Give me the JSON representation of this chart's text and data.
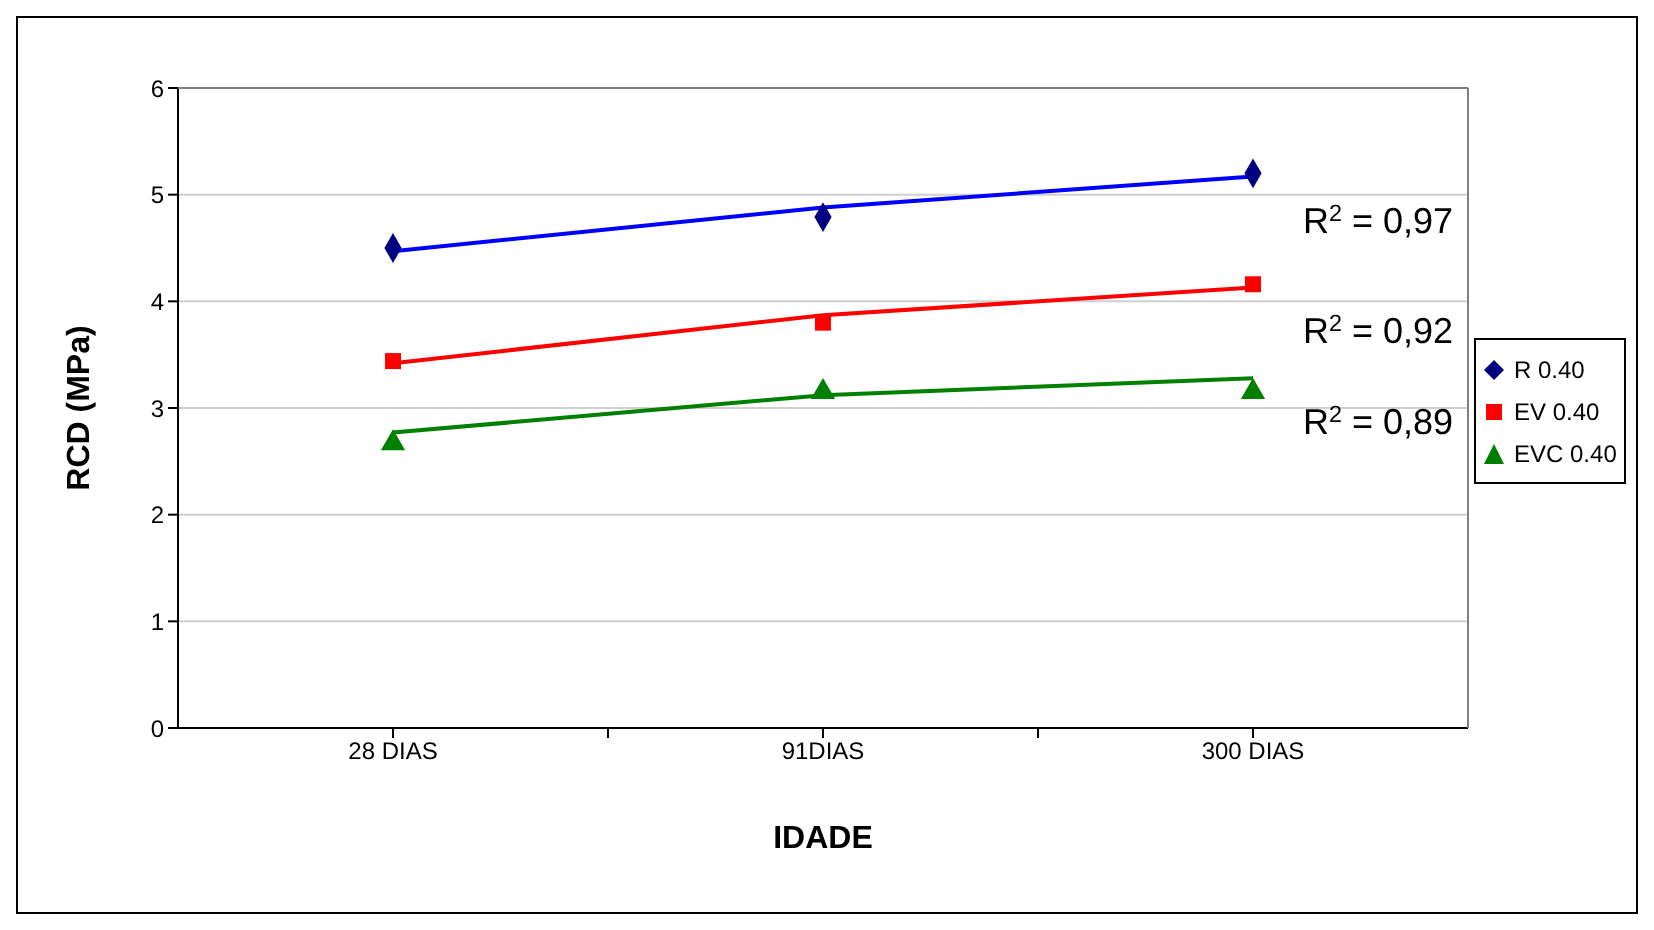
{
  "chart_data": {
    "type": "scatter",
    "xlabel": "IDADE",
    "ylabel": "RCD (MPa)",
    "categories": [
      "28 DIAS",
      "91DIAS",
      "300 DIAS"
    ],
    "ylim": [
      0,
      6
    ],
    "yticks": [
      0,
      1,
      2,
      3,
      4,
      5,
      6
    ],
    "grid": "y",
    "legend": "right",
    "series": [
      {
        "name": "R 0.40",
        "color": "#000080",
        "marker": "diamond",
        "values": [
          4.5,
          4.79,
          5.2
        ]
      },
      {
        "name": "EV 0.40",
        "color": "#ff0000",
        "marker": "square",
        "values": [
          3.44,
          3.8,
          4.16
        ]
      },
      {
        "name": "EVC 0.40",
        "color": "#008000",
        "marker": "triangle",
        "values": [
          2.67,
          3.15,
          3.15
        ]
      },
      {
        "type": "line",
        "color": "#0000ff",
        "marker": "none",
        "values": [
          4.47,
          4.88,
          5.17
        ]
      },
      {
        "type": "line",
        "color": "#ff0000",
        "marker": "none",
        "values": [
          3.42,
          3.87,
          4.13
        ]
      },
      {
        "type": "line",
        "color": "#008000",
        "marker": "none",
        "values": [
          2.77,
          3.12,
          3.28
        ]
      }
    ],
    "annotations": [
      {
        "text": "R$^{2}$ = 0,97",
        "x": "300 DIAS",
        "y": 5.17
      },
      {
        "text": "R$^{2}$ = 0,92",
        "x": "300 DIAS",
        "y": 4.13
      },
      {
        "text": "R$^{2}$ = 0,89",
        "x": "300 DIAS",
        "y": 3.28
      }
    ]
  }
}
